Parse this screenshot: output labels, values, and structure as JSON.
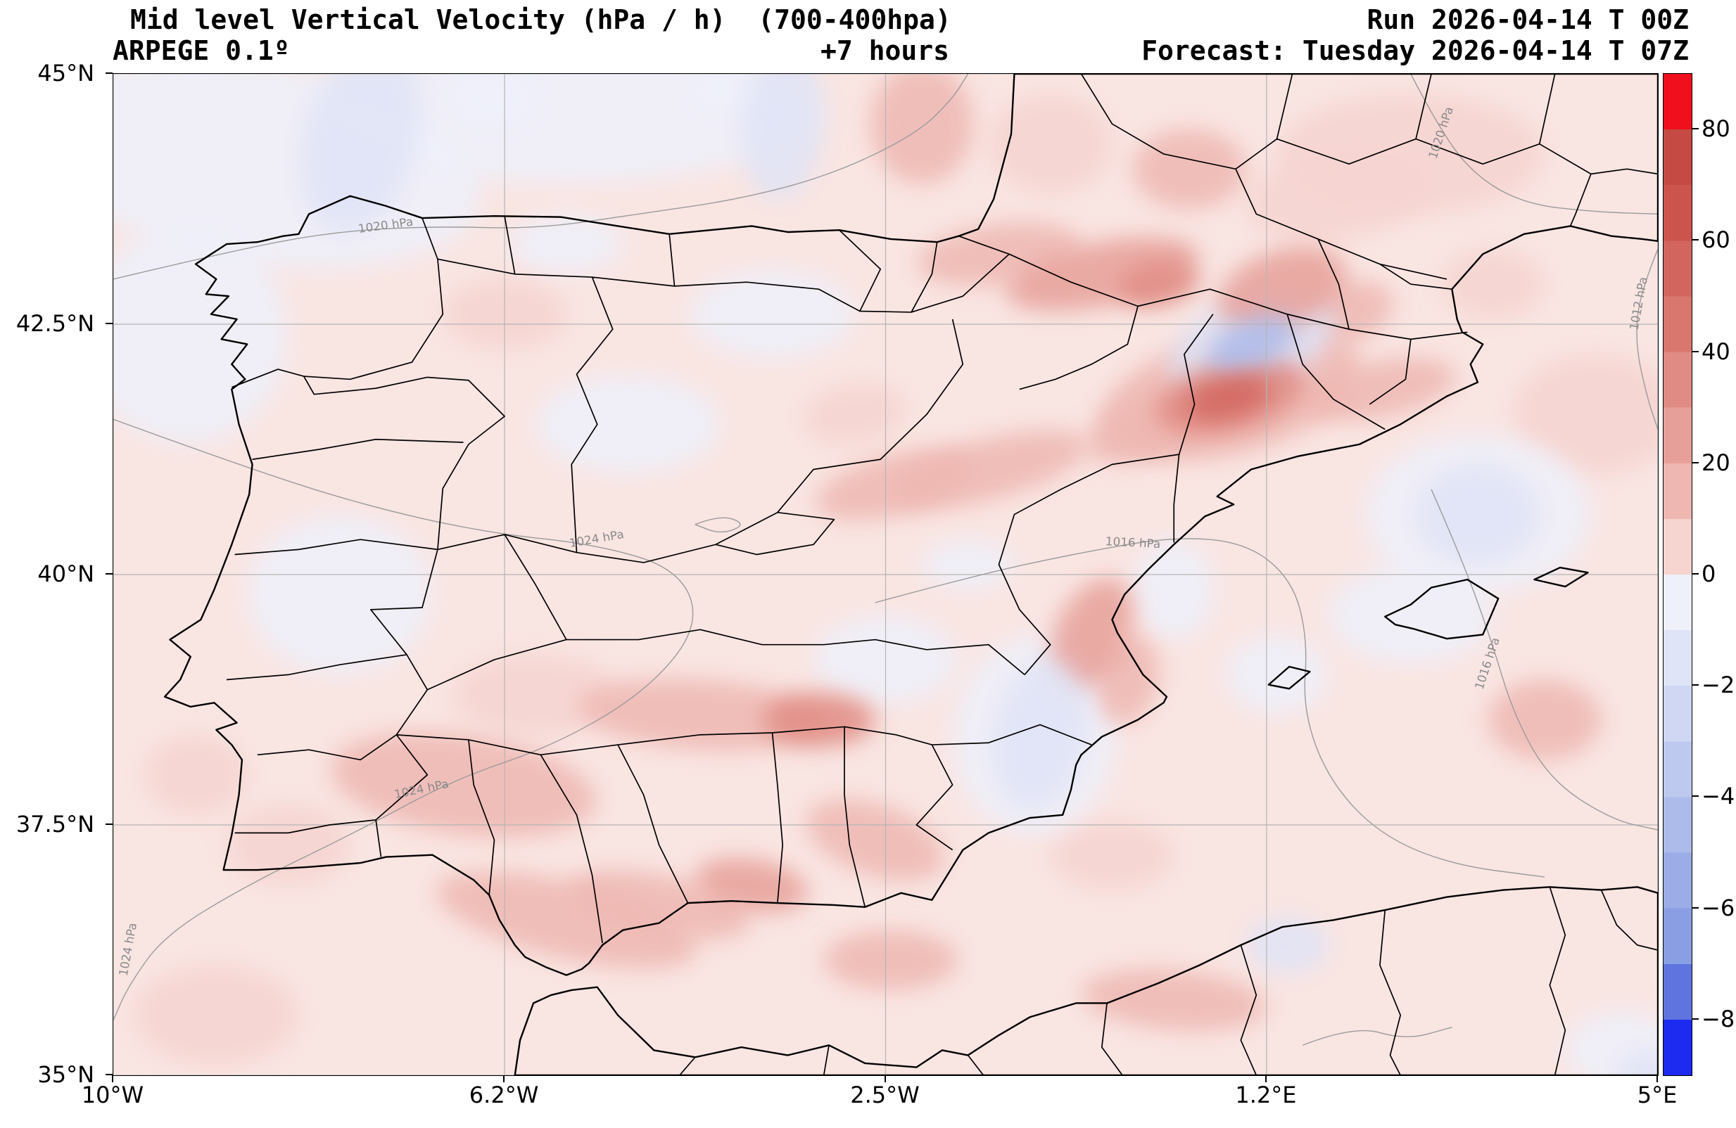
{
  "header": {
    "title": "Mid level Vertical Velocity (hPa / h)  (700-400hpa)",
    "model": "ARPEGE 0.1º",
    "lead": "+7 hours",
    "run": "Run 2026-04-14 T 00Z",
    "forecast": "Forecast: Tuesday 2026-04-14 T 07Z"
  },
  "chart_data": {
    "type": "heatmap",
    "title": "Mid level Vertical Velocity (hPa / h)  (700-400hpa)",
    "units": "hPa / h",
    "level": "700-400hpa",
    "model": "ARPEGE 0.1º",
    "lead_hours": 7,
    "background": "#f9e5e2",
    "grid_color": "#b5b5b5",
    "x_axis": {
      "min": -10,
      "max": 5,
      "ticks": [
        {
          "value": -10,
          "label": "10°W"
        },
        {
          "value": -6.2,
          "label": "6.2°W"
        },
        {
          "value": -2.5,
          "label": "2.5°W"
        },
        {
          "value": 1.2,
          "label": "1.2°E"
        },
        {
          "value": 5,
          "label": "5°E"
        }
      ]
    },
    "y_axis": {
      "min": 35,
      "max": 45,
      "ticks": [
        {
          "value": 45,
          "label": "45°N"
        },
        {
          "value": 42.5,
          "label": "42.5°N"
        },
        {
          "value": 40,
          "label": "40°N"
        },
        {
          "value": 37.5,
          "label": "37.5°N"
        },
        {
          "value": 35,
          "label": "35°N"
        }
      ]
    },
    "colorbar": {
      "min": -90,
      "max": 90,
      "ticks": [
        {
          "value": 80,
          "label": "80"
        },
        {
          "value": 60,
          "label": "60"
        },
        {
          "value": 40,
          "label": "40"
        },
        {
          "value": 20,
          "label": "20"
        },
        {
          "value": 0,
          "label": "0"
        },
        {
          "value": -20,
          "label": "−20"
        },
        {
          "value": -40,
          "label": "−40"
        },
        {
          "value": -60,
          "label": "−60"
        },
        {
          "value": -80,
          "label": "−80"
        }
      ],
      "bands": [
        {
          "from": -90,
          "to": -80,
          "color": "#1c2bef"
        },
        {
          "from": -80,
          "to": -70,
          "color": "#5f74de"
        },
        {
          "from": -70,
          "to": -60,
          "color": "#8a9ee3"
        },
        {
          "from": -60,
          "to": -50,
          "color": "#9bace7"
        },
        {
          "from": -50,
          "to": -40,
          "color": "#adbbeb"
        },
        {
          "from": -40,
          "to": -30,
          "color": "#bec9ef"
        },
        {
          "from": -30,
          "to": -20,
          "color": "#cfd7f3"
        },
        {
          "from": -20,
          "to": -10,
          "color": "#dfe4f7"
        },
        {
          "from": -10,
          "to": 0,
          "color": "#eef0fa"
        },
        {
          "from": 0,
          "to": 10,
          "color": "#f6d4d0"
        },
        {
          "from": 10,
          "to": 20,
          "color": "#efb7b1"
        },
        {
          "from": 20,
          "to": 30,
          "color": "#e7a099"
        },
        {
          "from": 30,
          "to": 40,
          "color": "#e08b83"
        },
        {
          "from": 40,
          "to": 50,
          "color": "#d9776f"
        },
        {
          "from": 50,
          "to": 60,
          "color": "#d2655d"
        },
        {
          "from": 60,
          "to": 70,
          "color": "#cb544c"
        },
        {
          "from": 70,
          "to": 80,
          "color": "#c54a43"
        },
        {
          "from": 80,
          "to": 90,
          "color": "#f0101d"
        }
      ]
    },
    "pressure_contours": [
      {
        "points": [
          [
            -10,
            42.95
          ],
          [
            -8.9,
            43.22
          ],
          [
            -7.9,
            43.42
          ],
          [
            -6.9,
            43.48
          ],
          [
            -5.9,
            43.45
          ],
          [
            -4.9,
            43.6
          ],
          [
            -3.9,
            43.75
          ],
          [
            -3.0,
            44.0
          ],
          [
            -2.2,
            44.4
          ],
          [
            -1.85,
            44.75
          ],
          [
            -1.7,
            45
          ]
        ],
        "labels": [
          {
            "text": "1020 hPa",
            "lon": -7.35,
            "lat": 43.45,
            "rot": -8
          }
        ]
      },
      {
        "points": [
          [
            2.6,
            45
          ],
          [
            2.85,
            44.5
          ],
          [
            3.2,
            44.0
          ],
          [
            3.7,
            43.7
          ],
          [
            4.4,
            43.62
          ],
          [
            5,
            43.6
          ]
        ],
        "labels": [
          {
            "text": "1020 hPa",
            "lon": 2.93,
            "lat": 44.4,
            "rot": -72
          }
        ]
      },
      {
        "points": [
          [
            5,
            43.25
          ],
          [
            4.82,
            42.8
          ],
          [
            4.78,
            42.3
          ],
          [
            4.9,
            41.75
          ],
          [
            5,
            41.45
          ]
        ],
        "labels": [
          {
            "text": "1012 hPa",
            "lon": 4.85,
            "lat": 42.7,
            "rot": -80
          }
        ]
      },
      {
        "points": [
          [
            -10,
            41.55
          ],
          [
            -8.8,
            41.1
          ],
          [
            -7.6,
            40.7
          ],
          [
            -6.4,
            40.42
          ],
          [
            -5.3,
            40.3
          ],
          [
            -4.5,
            40.05
          ],
          [
            -4.3,
            39.5
          ],
          [
            -4.8,
            38.85
          ],
          [
            -5.7,
            38.3
          ],
          [
            -6.7,
            37.95
          ],
          [
            -7.6,
            37.45
          ],
          [
            -8.7,
            36.9
          ],
          [
            -9.5,
            36.4
          ],
          [
            -9.85,
            35.9
          ],
          [
            -10,
            35.55
          ]
        ],
        "labels": [
          {
            "text": "1024 hPa",
            "lon": -5.3,
            "lat": 40.32,
            "rot": -10
          },
          {
            "text": "1024 hPa",
            "lon": -7.0,
            "lat": 37.82,
            "rot": -12
          },
          {
            "text": "1024 hPa",
            "lon": -9.82,
            "lat": 36.25,
            "rot": -80
          }
        ]
      },
      {
        "points": [
          [
            -2.6,
            39.72
          ],
          [
            -1.6,
            40.0
          ],
          [
            -0.6,
            40.22
          ],
          [
            0.3,
            40.38
          ],
          [
            1.0,
            40.32
          ],
          [
            1.45,
            39.95
          ],
          [
            1.6,
            39.35
          ],
          [
            1.55,
            38.65
          ],
          [
            1.8,
            37.95
          ],
          [
            2.3,
            37.4
          ],
          [
            3.0,
            37.1
          ],
          [
            3.9,
            36.98
          ]
        ],
        "labels": [
          {
            "text": "1016 hPa",
            "lon": -0.1,
            "lat": 40.28,
            "rot": 3
          }
        ]
      },
      {
        "points": [
          [
            2.8,
            40.85
          ],
          [
            3.1,
            40.15
          ],
          [
            3.38,
            39.35
          ],
          [
            3.6,
            38.6
          ],
          [
            3.95,
            37.95
          ],
          [
            4.55,
            37.55
          ],
          [
            5,
            37.45
          ]
        ],
        "labels": [
          {
            "text": "1016 hPa",
            "lon": 3.38,
            "lat": 39.1,
            "rot": -72
          }
        ]
      },
      {
        "points": [
          [
            1.55,
            35.3
          ],
          [
            2.05,
            35.5
          ],
          [
            2.55,
            35.35
          ],
          [
            3.0,
            35.48
          ]
        ],
        "labels": []
      },
      {
        "points": [
          [
            -4.35,
            40.5
          ],
          [
            -4.1,
            40.6
          ],
          [
            -3.85,
            40.5
          ],
          [
            -4.1,
            40.4
          ],
          [
            -4.35,
            40.5
          ]
        ],
        "labels": []
      }
    ],
    "feature_fields": [
      "lon",
      "lat",
      "rx_deg",
      "ry_deg",
      "rot_deg",
      "value_hPa_per_h"
    ],
    "features": [
      [
        -8.6,
        44.1,
        2.2,
        1.0,
        10,
        -4
      ],
      [
        -5.6,
        44.6,
        2.4,
        0.7,
        0,
        -4
      ],
      [
        -9.3,
        42.4,
        1.0,
        1.1,
        0,
        -4
      ],
      [
        -7.8,
        39.8,
        0.9,
        0.8,
        0,
        -3
      ],
      [
        -3.6,
        42.6,
        0.8,
        0.45,
        0,
        -3
      ],
      [
        -5.0,
        41.5,
        0.9,
        0.5,
        0,
        -4
      ],
      [
        -2.5,
        39.15,
        0.7,
        0.45,
        0,
        -5
      ],
      [
        2.6,
        44.2,
        1.3,
        0.6,
        0,
        7
      ],
      [
        4.4,
        41.6,
        0.8,
        0.6,
        0,
        7
      ],
      [
        1.9,
        43.8,
        0.9,
        0.45,
        -10,
        9
      ],
      [
        -7.6,
        44.35,
        0.55,
        0.95,
        15,
        -13
      ],
      [
        -6.3,
        44.75,
        0.5,
        0.35,
        0,
        -7
      ],
      [
        -3.5,
        44.5,
        0.4,
        0.75,
        5,
        -18
      ],
      [
        -4.1,
        44.85,
        0.35,
        0.3,
        0,
        -9
      ],
      [
        -2.15,
        44.5,
        0.5,
        0.6,
        0,
        11
      ],
      [
        0.45,
        44.05,
        0.55,
        0.4,
        0,
        10
      ],
      [
        -5.6,
        43.3,
        0.55,
        0.3,
        0,
        -6
      ],
      [
        -1.4,
        43.2,
        0.8,
        0.3,
        -8,
        16
      ],
      [
        -0.4,
        43.0,
        0.95,
        0.32,
        -12,
        26
      ],
      [
        0.15,
        42.9,
        0.4,
        0.22,
        -12,
        32
      ],
      [
        1.35,
        42.85,
        0.65,
        0.38,
        -20,
        24
      ],
      [
        1.95,
        42.6,
        0.5,
        0.3,
        -20,
        14
      ],
      [
        1.05,
        42.3,
        0.85,
        0.5,
        -25,
        -20
      ],
      [
        1.05,
        42.3,
        0.45,
        0.24,
        -25,
        -42
      ],
      [
        0.85,
        41.8,
        1.3,
        0.6,
        -15,
        18
      ],
      [
        0.85,
        41.78,
        0.75,
        0.35,
        -15,
        35
      ],
      [
        0.83,
        41.77,
        0.42,
        0.2,
        -15,
        55
      ],
      [
        2.3,
        41.85,
        0.75,
        0.28,
        -12,
        16
      ],
      [
        -1.5,
        41.05,
        1.0,
        0.3,
        -15,
        13
      ],
      [
        0.1,
        41.5,
        0.7,
        0.3,
        -22,
        17
      ],
      [
        -2.4,
        40.9,
        0.8,
        0.3,
        -15,
        11
      ],
      [
        -1.7,
        40.1,
        0.45,
        0.25,
        0,
        -9
      ],
      [
        3.25,
        40.6,
        1.1,
        0.8,
        0,
        -7
      ],
      [
        3.25,
        40.6,
        0.6,
        0.5,
        0,
        -14
      ],
      [
        -0.5,
        39.4,
        0.35,
        0.6,
        25,
        20
      ],
      [
        -0.15,
        38.95,
        0.3,
        0.45,
        15,
        13
      ],
      [
        -1.05,
        38.4,
        0.8,
        1.0,
        5,
        -9
      ],
      [
        -1.0,
        38.4,
        0.45,
        0.75,
        10,
        -20
      ],
      [
        -4.3,
        38.6,
        1.2,
        0.35,
        4,
        14
      ],
      [
        -3.15,
        38.55,
        0.55,
        0.27,
        0,
        30
      ],
      [
        -5.9,
        38.8,
        0.8,
        0.4,
        0,
        9
      ],
      [
        -6.6,
        37.9,
        1.3,
        0.5,
        8,
        10
      ],
      [
        -5.6,
        36.55,
        1.3,
        0.38,
        14,
        12
      ],
      [
        -3.8,
        36.9,
        0.55,
        0.26,
        10,
        26
      ],
      [
        -4.7,
        36.7,
        0.9,
        0.3,
        12,
        15
      ],
      [
        -2.45,
        36.15,
        0.65,
        0.3,
        0,
        12
      ],
      [
        -2.6,
        37.35,
        0.7,
        0.35,
        20,
        10
      ],
      [
        0.3,
        35.75,
        0.9,
        0.3,
        5,
        10
      ],
      [
        1.4,
        36.3,
        0.4,
        0.28,
        0,
        -14
      ],
      [
        4.65,
        35.25,
        0.55,
        0.4,
        0,
        -10
      ],
      [
        4.9,
        35.0,
        0.3,
        0.25,
        0,
        -18
      ],
      [
        3.9,
        38.55,
        0.55,
        0.4,
        0,
        11
      ],
      [
        1.3,
        39.0,
        0.5,
        0.4,
        0,
        -6
      ],
      [
        -0.9,
        44.3,
        0.6,
        0.5,
        0,
        8
      ],
      [
        -2.8,
        41.6,
        0.5,
        0.3,
        -10,
        9
      ],
      [
        -6.2,
        42.6,
        0.6,
        0.35,
        0,
        6
      ],
      [
        -8.3,
        37.3,
        0.6,
        0.4,
        0,
        8
      ],
      [
        -9.2,
        38.0,
        0.5,
        0.4,
        0,
        6
      ],
      [
        -0.3,
        37.2,
        0.6,
        0.35,
        0,
        8
      ],
      [
        2.6,
        39.6,
        0.8,
        0.5,
        0,
        -5
      ],
      [
        -9.0,
        35.6,
        0.8,
        0.5,
        0,
        6
      ],
      [
        3.4,
        42.9,
        0.5,
        0.35,
        0,
        9
      ],
      [
        0.3,
        39.85,
        0.4,
        0.5,
        0,
        -8
      ]
    ]
  }
}
